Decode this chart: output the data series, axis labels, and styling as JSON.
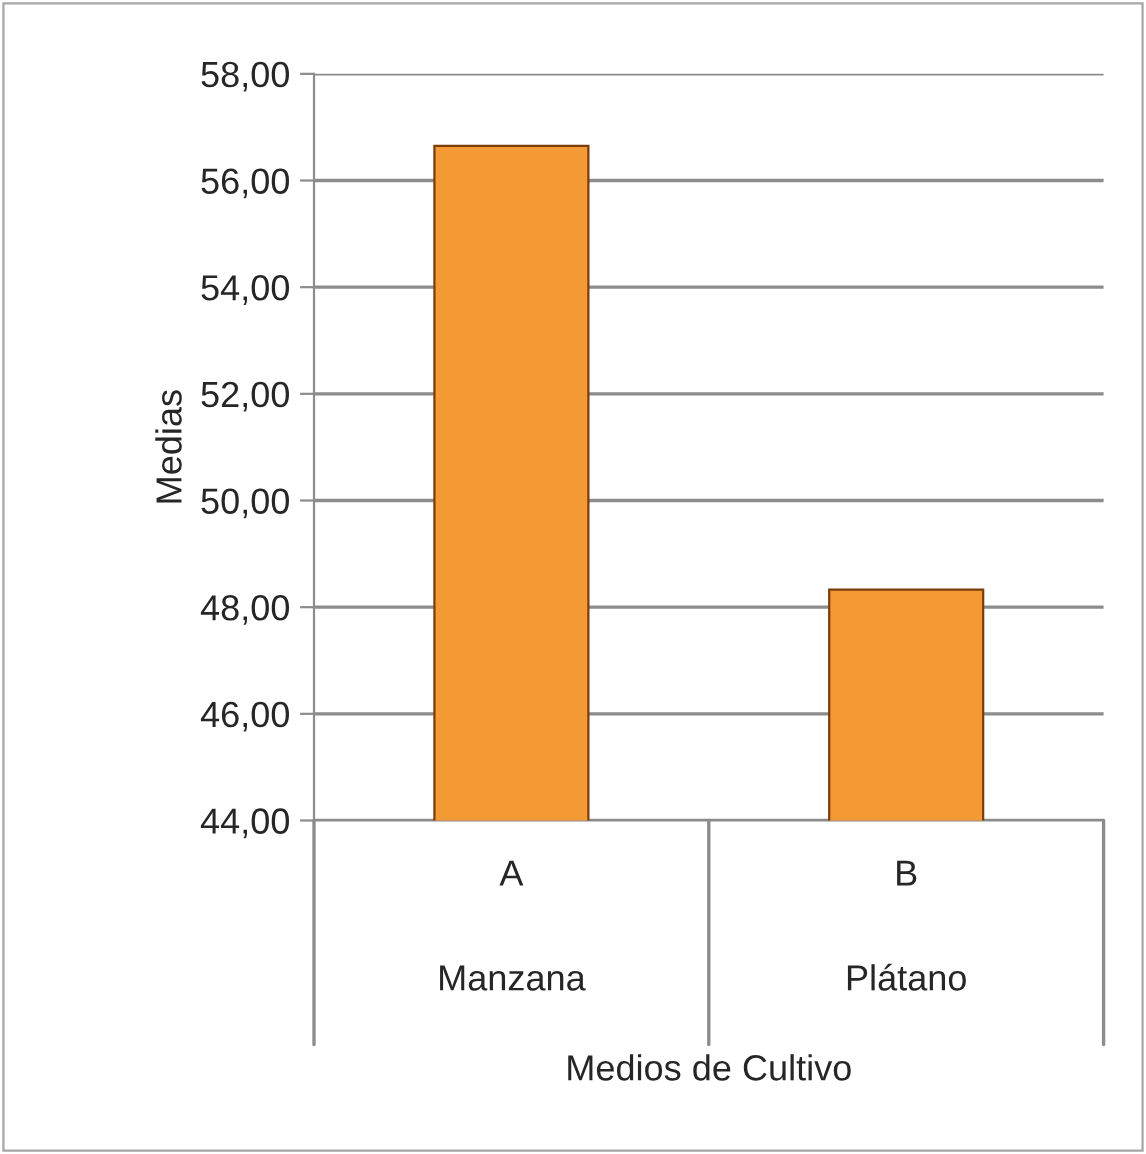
{
  "chart_data": {
    "type": "bar",
    "xlabel": "Medios de Cultivo",
    "ylabel": "Medias",
    "categories": [
      "A",
      "B"
    ],
    "values": [
      56.65,
      48.33
    ],
    "color": "#f39a34",
    "ylim": [
      44,
      58
    ],
    "yticks": [
      {
        "value": 44,
        "label": "44,00"
      },
      {
        "value": 46,
        "label": "46,00"
      },
      {
        "value": 48,
        "label": "48,00"
      },
      {
        "value": 50,
        "label": "50,00"
      },
      {
        "value": 52,
        "label": "52,00"
      },
      {
        "value": 54,
        "label": "54,00"
      },
      {
        "value": 56,
        "label": "56,00"
      },
      {
        "value": 58,
        "label": "58,00"
      }
    ],
    "grid": "y",
    "annotations": [
      "Manzana",
      "Plátano"
    ]
  }
}
